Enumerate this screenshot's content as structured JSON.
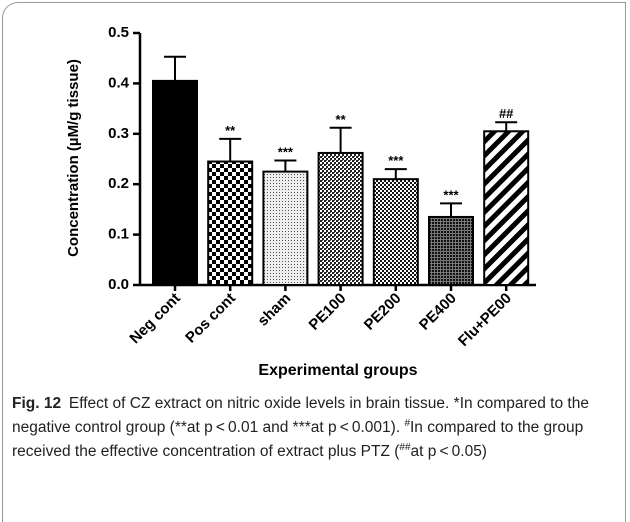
{
  "chart_data": {
    "type": "bar",
    "categories": [
      "Neg cont",
      "Pos cont",
      "sham",
      "PE100",
      "PE200",
      "PE400",
      "Flu+PE00"
    ],
    "values": [
      0.405,
      0.245,
      0.225,
      0.262,
      0.21,
      0.135,
      0.305
    ],
    "errors": [
      0.048,
      0.045,
      0.022,
      0.05,
      0.02,
      0.027,
      0.018
    ],
    "annotations": [
      null,
      "**",
      "***",
      "**",
      "***",
      "***",
      "##"
    ],
    "ylim": [
      0,
      0.5
    ],
    "yticks": [
      {
        "value": 0,
        "label": "0.0"
      },
      0.1,
      0.2,
      0.3,
      0.4,
      0.5
    ],
    "ylabel": "Concentration (µM/g tissue)",
    "xlabel": "Experimental groups",
    "color": "#000000"
  },
  "caption": {
    "label": "Fig. 12",
    "text": [
      "Effect of CZ extract on nitric oxide levels in brain tissue. *In compared to the negative control group (**at p < 0.01 and ***at p < 0.001). ",
      "In compared to the group received the effective concentration of extract plus PTZ (",
      "at p < 0.05)"
    ],
    "superscripts": [
      "#",
      "##"
    ]
  }
}
